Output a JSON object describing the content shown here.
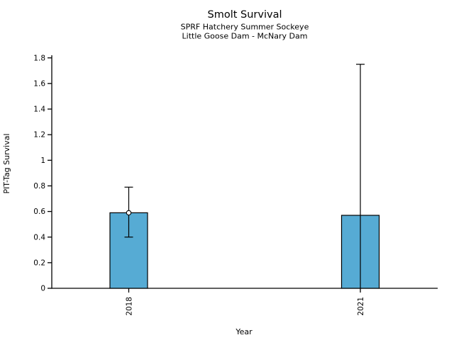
{
  "chart_data": {
    "type": "bar",
    "title": "Smolt Survival",
    "subtitle1": "SPRF Hatchery Summer Sockeye",
    "subtitle2": "Little Goose Dam - McNary Dam",
    "xlabel": "Year",
    "ylabel": "PIT-Tag Survival",
    "categories": [
      "2018",
      "2021"
    ],
    "values": [
      0.59,
      0.57
    ],
    "error_low": [
      0.4,
      0.0
    ],
    "error_high": [
      0.79,
      1.75
    ],
    "point_markers": [
      0.59,
      null
    ],
    "ylim": [
      0,
      1.8
    ],
    "yticks": [
      0,
      0.2,
      0.4,
      0.6,
      0.8,
      1,
      1.2,
      1.4,
      1.6,
      1.8
    ],
    "ytick_labels": [
      "0",
      "0.2",
      "0.4",
      "0.6",
      "0.8",
      "1",
      "1.2",
      "1.4",
      "1.6",
      "1.8"
    ],
    "xtick_rotation_deg": 90,
    "bar_color": "#56ABD4",
    "bar_edge_color": "#000000",
    "error_bar_color": "#000000",
    "marker_fill": "#ffffff",
    "axis_color": "#000000",
    "background": "#ffffff",
    "grid": false,
    "legend": null
  }
}
